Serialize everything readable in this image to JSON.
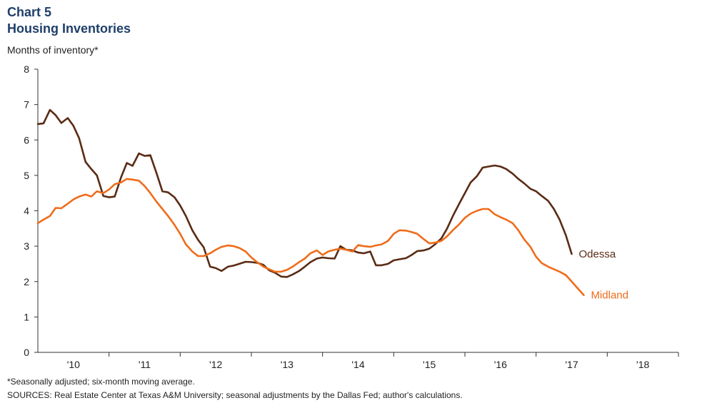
{
  "chart_data": {
    "type": "line",
    "chart_number": "Chart 5",
    "title": "Housing Inventories",
    "ylabel": "Months of inventory*",
    "xlabel": "",
    "ylim": [
      0,
      8
    ],
    "yticks": [
      0,
      1,
      2,
      3,
      4,
      5,
      6,
      7,
      8
    ],
    "xlim": [
      2009.5,
      2018.5
    ],
    "xtick_labels": [
      {
        "label": "'10",
        "year": 2010
      },
      {
        "label": "'11",
        "year": 2011
      },
      {
        "label": "'12",
        "year": 2012
      },
      {
        "label": "'13",
        "year": 2013
      },
      {
        "label": "'14",
        "year": 2014
      },
      {
        "label": "'15",
        "year": 2015
      },
      {
        "label": "'16",
        "year": 2016
      },
      {
        "label": "'17",
        "year": 2017
      },
      {
        "label": "'18",
        "year": 2018
      }
    ],
    "grid": false,
    "series": [
      {
        "name": "Odessa",
        "color": "#5a2b14",
        "points": [
          [
            2009.5,
            6.45
          ],
          [
            2009.58,
            6.47
          ],
          [
            2009.67,
            6.85
          ],
          [
            2009.75,
            6.7
          ],
          [
            2009.83,
            6.48
          ],
          [
            2009.92,
            6.62
          ],
          [
            2010.0,
            6.4
          ],
          [
            2010.08,
            6.05
          ],
          [
            2010.17,
            5.38
          ],
          [
            2010.25,
            5.18
          ],
          [
            2010.33,
            5.0
          ],
          [
            2010.42,
            4.42
          ],
          [
            2010.5,
            4.38
          ],
          [
            2010.58,
            4.4
          ],
          [
            2010.67,
            4.95
          ],
          [
            2010.75,
            5.35
          ],
          [
            2010.83,
            5.27
          ],
          [
            2010.92,
            5.62
          ],
          [
            2011.0,
            5.55
          ],
          [
            2011.08,
            5.57
          ],
          [
            2011.17,
            5.05
          ],
          [
            2011.25,
            4.55
          ],
          [
            2011.33,
            4.52
          ],
          [
            2011.42,
            4.38
          ],
          [
            2011.5,
            4.15
          ],
          [
            2011.58,
            3.85
          ],
          [
            2011.67,
            3.45
          ],
          [
            2011.75,
            3.18
          ],
          [
            2011.83,
            2.97
          ],
          [
            2011.92,
            2.42
          ],
          [
            2012.0,
            2.38
          ],
          [
            2012.08,
            2.3
          ],
          [
            2012.17,
            2.42
          ],
          [
            2012.25,
            2.45
          ],
          [
            2012.33,
            2.5
          ],
          [
            2012.42,
            2.56
          ],
          [
            2012.5,
            2.55
          ],
          [
            2012.58,
            2.53
          ],
          [
            2012.67,
            2.47
          ],
          [
            2012.75,
            2.32
          ],
          [
            2012.83,
            2.25
          ],
          [
            2012.92,
            2.14
          ],
          [
            2013.0,
            2.13
          ],
          [
            2013.08,
            2.2
          ],
          [
            2013.17,
            2.3
          ],
          [
            2013.25,
            2.42
          ],
          [
            2013.33,
            2.55
          ],
          [
            2013.42,
            2.65
          ],
          [
            2013.5,
            2.68
          ],
          [
            2013.58,
            2.66
          ],
          [
            2013.67,
            2.65
          ],
          [
            2013.75,
            3.0
          ],
          [
            2013.83,
            2.9
          ],
          [
            2013.92,
            2.88
          ],
          [
            2014.0,
            2.82
          ],
          [
            2014.08,
            2.8
          ],
          [
            2014.17,
            2.85
          ],
          [
            2014.25,
            2.46
          ],
          [
            2014.33,
            2.46
          ],
          [
            2014.42,
            2.5
          ],
          [
            2014.5,
            2.6
          ],
          [
            2014.58,
            2.63
          ],
          [
            2014.67,
            2.66
          ],
          [
            2014.75,
            2.75
          ],
          [
            2014.83,
            2.86
          ],
          [
            2014.92,
            2.88
          ],
          [
            2015.0,
            2.93
          ],
          [
            2015.08,
            3.05
          ],
          [
            2015.17,
            3.22
          ],
          [
            2015.25,
            3.5
          ],
          [
            2015.33,
            3.85
          ],
          [
            2015.42,
            4.2
          ],
          [
            2015.5,
            4.5
          ],
          [
            2015.58,
            4.8
          ],
          [
            2015.67,
            4.98
          ],
          [
            2015.75,
            5.22
          ],
          [
            2015.83,
            5.25
          ],
          [
            2015.92,
            5.28
          ],
          [
            2016.0,
            5.25
          ],
          [
            2016.08,
            5.18
          ],
          [
            2016.17,
            5.05
          ],
          [
            2016.25,
            4.9
          ],
          [
            2016.33,
            4.78
          ],
          [
            2016.42,
            4.62
          ],
          [
            2016.5,
            4.55
          ],
          [
            2016.58,
            4.42
          ],
          [
            2016.67,
            4.28
          ],
          [
            2016.75,
            4.05
          ],
          [
            2016.83,
            3.75
          ],
          [
            2016.92,
            3.3
          ],
          [
            2017.0,
            2.78
          ]
        ]
      },
      {
        "name": "Midland",
        "color": "#ef6c1a",
        "points": [
          [
            2009.5,
            3.65
          ],
          [
            2009.58,
            3.75
          ],
          [
            2009.67,
            3.85
          ],
          [
            2009.75,
            4.08
          ],
          [
            2009.83,
            4.07
          ],
          [
            2009.92,
            4.2
          ],
          [
            2010.0,
            4.32
          ],
          [
            2010.08,
            4.4
          ],
          [
            2010.17,
            4.46
          ],
          [
            2010.25,
            4.4
          ],
          [
            2010.33,
            4.55
          ],
          [
            2010.42,
            4.5
          ],
          [
            2010.5,
            4.6
          ],
          [
            2010.58,
            4.75
          ],
          [
            2010.67,
            4.8
          ],
          [
            2010.75,
            4.9
          ],
          [
            2010.83,
            4.88
          ],
          [
            2010.92,
            4.85
          ],
          [
            2011.0,
            4.7
          ],
          [
            2011.08,
            4.5
          ],
          [
            2011.17,
            4.25
          ],
          [
            2011.25,
            4.05
          ],
          [
            2011.33,
            3.85
          ],
          [
            2011.42,
            3.6
          ],
          [
            2011.5,
            3.35
          ],
          [
            2011.58,
            3.05
          ],
          [
            2011.67,
            2.85
          ],
          [
            2011.75,
            2.72
          ],
          [
            2011.83,
            2.72
          ],
          [
            2011.92,
            2.8
          ],
          [
            2012.0,
            2.9
          ],
          [
            2012.08,
            2.98
          ],
          [
            2012.17,
            3.02
          ],
          [
            2012.25,
            3.0
          ],
          [
            2012.33,
            2.95
          ],
          [
            2012.42,
            2.85
          ],
          [
            2012.5,
            2.68
          ],
          [
            2012.58,
            2.55
          ],
          [
            2012.67,
            2.42
          ],
          [
            2012.75,
            2.35
          ],
          [
            2012.83,
            2.28
          ],
          [
            2012.92,
            2.28
          ],
          [
            2013.0,
            2.33
          ],
          [
            2013.08,
            2.42
          ],
          [
            2013.17,
            2.55
          ],
          [
            2013.25,
            2.65
          ],
          [
            2013.33,
            2.8
          ],
          [
            2013.42,
            2.88
          ],
          [
            2013.5,
            2.75
          ],
          [
            2013.58,
            2.85
          ],
          [
            2013.67,
            2.9
          ],
          [
            2013.75,
            2.93
          ],
          [
            2013.83,
            2.9
          ],
          [
            2013.92,
            2.85
          ],
          [
            2014.0,
            3.03
          ],
          [
            2014.08,
            3.0
          ],
          [
            2014.17,
            2.98
          ],
          [
            2014.25,
            3.02
          ],
          [
            2014.33,
            3.05
          ],
          [
            2014.42,
            3.15
          ],
          [
            2014.5,
            3.35
          ],
          [
            2014.58,
            3.45
          ],
          [
            2014.67,
            3.44
          ],
          [
            2014.75,
            3.4
          ],
          [
            2014.83,
            3.35
          ],
          [
            2014.92,
            3.2
          ],
          [
            2015.0,
            3.08
          ],
          [
            2015.08,
            3.1
          ],
          [
            2015.17,
            3.15
          ],
          [
            2015.25,
            3.28
          ],
          [
            2015.33,
            3.45
          ],
          [
            2015.42,
            3.62
          ],
          [
            2015.5,
            3.8
          ],
          [
            2015.58,
            3.92
          ],
          [
            2015.67,
            4.0
          ],
          [
            2015.75,
            4.05
          ],
          [
            2015.83,
            4.05
          ],
          [
            2015.92,
            3.9
          ],
          [
            2016.0,
            3.82
          ],
          [
            2016.08,
            3.75
          ],
          [
            2016.17,
            3.65
          ],
          [
            2016.25,
            3.45
          ],
          [
            2016.33,
            3.2
          ],
          [
            2016.42,
            2.98
          ],
          [
            2016.5,
            2.7
          ],
          [
            2016.58,
            2.52
          ],
          [
            2016.67,
            2.42
          ],
          [
            2016.75,
            2.35
          ],
          [
            2016.83,
            2.28
          ],
          [
            2016.92,
            2.18
          ],
          [
            2017.0,
            2.0
          ],
          [
            2017.08,
            1.82
          ],
          [
            2017.17,
            1.62
          ]
        ]
      }
    ]
  },
  "footnotes": {
    "note": "*Seasonally adjusted; six-month moving average.",
    "sources": "SOURCES: Real Estate Center at Texas A&M University; seasonal adjustments by the Dallas Fed; author's calculations."
  }
}
